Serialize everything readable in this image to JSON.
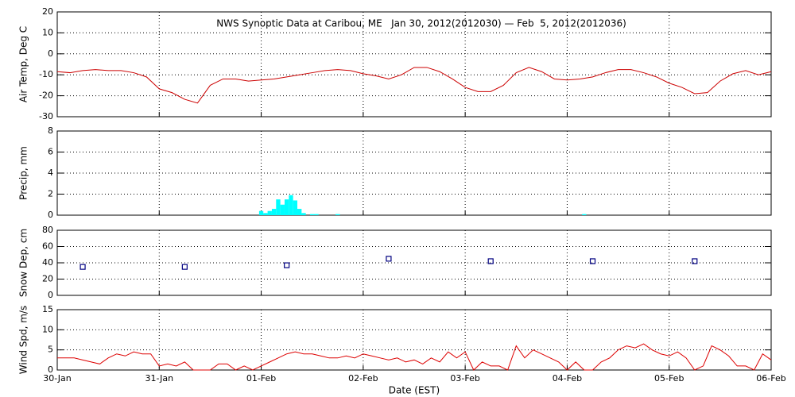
{
  "chart_data": [
    {
      "type": "line",
      "title": "NWS Synoptic Data at Caribou, ME   Jan 30, 2012(2012030) — Feb  5, 2012(2012036)",
      "ylabel": "Air Temp, Deg C",
      "x": [
        0,
        3,
        6,
        9,
        12,
        15,
        18,
        21,
        24,
        27,
        30,
        33,
        36,
        39,
        42,
        45,
        48,
        51,
        54,
        57,
        60,
        63,
        66,
        69,
        72,
        75,
        78,
        81,
        84,
        87,
        90,
        93,
        96,
        99,
        102,
        105,
        108,
        111,
        114,
        117,
        120,
        123,
        126,
        129,
        132,
        135,
        138,
        141,
        144,
        147,
        150,
        153,
        156,
        159,
        162,
        165,
        168
      ],
      "series": [
        {
          "name": "Air Temp",
          "color": "#cc0000",
          "values": [
            -8.5,
            -9,
            -8,
            -7.5,
            -8,
            -8,
            -9,
            -11,
            -16.7,
            -18.5,
            -21.7,
            -23.5,
            -15,
            -12,
            -12,
            -13,
            -12.5,
            -12,
            -11,
            -10,
            -9,
            -8,
            -7.5,
            -8,
            -9.5,
            -10.5,
            -12,
            -10,
            -6.5,
            -6.5,
            -8.5,
            -12,
            -16,
            -18,
            -18,
            -15,
            -9,
            -6.5,
            -8.5,
            -12,
            -12.5,
            -12,
            -11,
            -9,
            -7.5,
            -7.5,
            -9,
            -11,
            -14,
            -16,
            -19,
            -18.5,
            -13,
            -9.5,
            -8,
            -10,
            -8.5
          ]
        }
      ],
      "xlim": [
        0,
        168
      ],
      "xticks": [
        24,
        48,
        72,
        96,
        120,
        144
      ],
      "ylim": [
        -30,
        20
      ],
      "yticks": [
        -30,
        -20,
        -10,
        0,
        10,
        20
      ],
      "grid": true
    },
    {
      "type": "bar",
      "ylabel": "Precip, mm",
      "x": [
        48,
        49,
        50,
        51,
        52,
        53,
        54,
        55,
        56,
        57,
        58,
        60,
        61,
        66,
        124
      ],
      "series": [
        {
          "name": "Precip",
          "color": "#00ffff",
          "values": [
            0.4,
            0.2,
            0.4,
            0.6,
            1.5,
            1.0,
            1.5,
            1.9,
            1.4,
            0.6,
            0.2,
            0.1,
            0.1,
            0.1,
            0.1
          ]
        }
      ],
      "xlim": [
        0,
        168
      ],
      "xticks": [
        24,
        48,
        72,
        96,
        120,
        144
      ],
      "ylim": [
        0,
        8
      ],
      "yticks": [
        0,
        2,
        4,
        6,
        8
      ],
      "grid": true
    },
    {
      "type": "scatter",
      "ylabel": "Snow Dep, cm",
      "x": [
        6,
        30,
        54,
        78,
        102,
        126,
        150
      ],
      "series": [
        {
          "name": "Snow Depth",
          "color": "#000080",
          "values": [
            35,
            35,
            37,
            45,
            42,
            42,
            42
          ]
        }
      ],
      "xlim": [
        0,
        168
      ],
      "xticks": [
        24,
        48,
        72,
        96,
        120,
        144
      ],
      "ylim": [
        0,
        80
      ],
      "yticks": [
        0,
        20,
        40,
        60,
        80
      ],
      "grid": true
    },
    {
      "type": "line",
      "ylabel": "Wind Spd, m/s",
      "xlabel": "Date (EST)",
      "x": [
        0,
        2,
        4,
        6,
        8,
        10,
        12,
        14,
        16,
        18,
        20,
        22,
        24,
        26,
        28,
        30,
        32,
        34,
        36,
        38,
        40,
        42,
        44,
        46,
        48,
        50,
        52,
        54,
        56,
        58,
        60,
        62,
        64,
        66,
        68,
        70,
        72,
        74,
        76,
        78,
        80,
        82,
        84,
        86,
        88,
        90,
        92,
        94,
        96,
        98,
        100,
        102,
        104,
        106,
        108,
        110,
        112,
        114,
        116,
        118,
        120,
        122,
        124,
        126,
        128,
        130,
        132,
        134,
        136,
        138,
        140,
        142,
        144,
        146,
        148,
        150,
        152,
        154,
        156,
        158,
        160,
        162,
        164,
        166,
        168
      ],
      "series": [
        {
          "name": "Wind Speed",
          "color": "#dd0000",
          "values": [
            3,
            3,
            3,
            2.5,
            2,
            1.5,
            3,
            4,
            3.5,
            4.5,
            4,
            4,
            1,
            1.5,
            1,
            2,
            0,
            0,
            0,
            1.5,
            1.5,
            0,
            1,
            0,
            1,
            2,
            3,
            4,
            4.5,
            4,
            4,
            3.5,
            3,
            3,
            3.5,
            3,
            4,
            3.5,
            3,
            2.5,
            3,
            2,
            2.5,
            1.5,
            3,
            2,
            4.5,
            3,
            4.5,
            0,
            2,
            1,
            1,
            0,
            6,
            3,
            5,
            4,
            3,
            2,
            0,
            2,
            0,
            0,
            2,
            3,
            5,
            6,
            5.5,
            6.5,
            5,
            4,
            3.5,
            4.5,
            3,
            0,
            1,
            6,
            5,
            3.5,
            1,
            1,
            0,
            4,
            2.5
          ]
        }
      ],
      "xlim": [
        0,
        168
      ],
      "xticks": [
        {
          "value": 0,
          "label": "30-Jan"
        },
        {
          "value": 24,
          "label": "31-Jan"
        },
        {
          "value": 48,
          "label": "01-Feb"
        },
        {
          "value": 72,
          "label": "02-Feb"
        },
        {
          "value": 96,
          "label": "03-Feb"
        },
        {
          "value": 120,
          "label": "04-Feb"
        },
        {
          "value": 144,
          "label": "05-Feb"
        },
        {
          "value": 168,
          "label": "06-Feb"
        }
      ],
      "ylim": [
        0,
        15
      ],
      "yticks": [
        0,
        5,
        10,
        15
      ],
      "grid": true
    }
  ]
}
